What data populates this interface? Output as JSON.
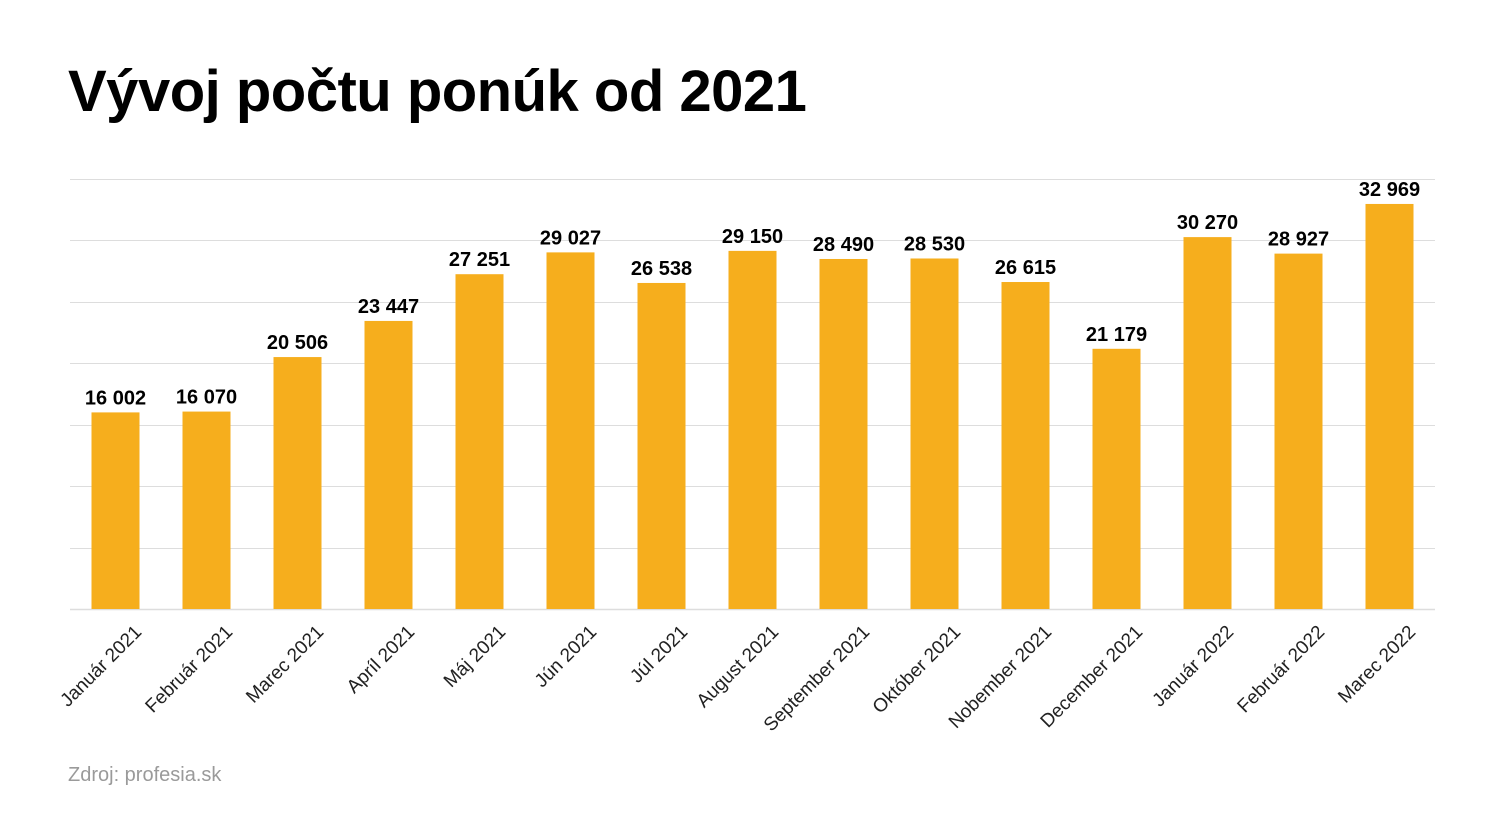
{
  "chart_data": {
    "type": "bar",
    "title": "Vývoj počtu ponúk od 2021",
    "source": "Zdroj: profesia.sk",
    "categories": [
      "Január 2021",
      "Február 2021",
      "Marec 2021",
      "Apríl 2021",
      "Máj 2021",
      "Jún 2021",
      "Júl 2021",
      "August 2021",
      "September 2021",
      "Október 2021",
      "Nobember 2021",
      "December 2021",
      "Január 2022",
      "Február 2022",
      "Marec 2022"
    ],
    "values": [
      16002,
      16070,
      20506,
      23447,
      27251,
      29027,
      26538,
      29150,
      28490,
      28530,
      26615,
      21179,
      30270,
      28927,
      32969
    ],
    "value_labels": [
      "16 002",
      "16 070",
      "20 506",
      "23 447",
      "27 251",
      "29 027",
      "26 538",
      "29 150",
      "28 490",
      "28 530",
      "26 615",
      "21 179",
      "30 270",
      "28 927",
      "32 969"
    ],
    "ylim": [
      0,
      35000
    ],
    "grid": true,
    "legend": "none",
    "bar_color": "#F6AE1D",
    "grid_color": "#DDDDDD"
  }
}
